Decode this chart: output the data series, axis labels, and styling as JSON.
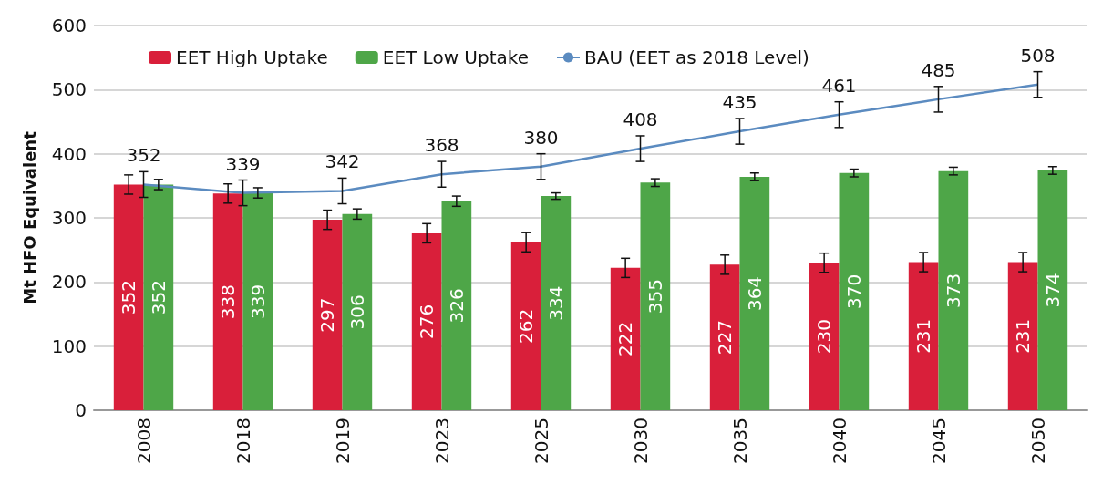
{
  "chart_data": {
    "type": "bar",
    "ylabel": "Mt HFO Equivalent",
    "categories": [
      "2008",
      "2018",
      "2019",
      "2023",
      "2025",
      "2030",
      "2035",
      "2040",
      "2045",
      "2050"
    ],
    "series": [
      {
        "name": "EET High Uptake",
        "color": "#d91f3a",
        "values": [
          352,
          338,
          297,
          276,
          262,
          222,
          227,
          230,
          231,
          231
        ],
        "errors": [
          15,
          15,
          15,
          15,
          15,
          15,
          15,
          15,
          15,
          15
        ]
      },
      {
        "name": "EET Low Uptake",
        "color": "#4ea648",
        "values": [
          352,
          339,
          306,
          326,
          334,
          355,
          364,
          370,
          373,
          374
        ],
        "errors": [
          8,
          8,
          8,
          8,
          5,
          6,
          6,
          6,
          6,
          6
        ]
      },
      {
        "name": "BAU (EET as 2018 Level)",
        "type": "line",
        "color": "#5b8bc0",
        "values": [
          352,
          339,
          342,
          368,
          380,
          408,
          435,
          461,
          485,
          508
        ],
        "errors": [
          20,
          20,
          20,
          20,
          20,
          20,
          20,
          20,
          20,
          20
        ]
      }
    ],
    "ylim": [
      0,
      600
    ],
    "yticks": [
      0,
      100,
      200,
      300,
      400,
      500,
      600
    ],
    "grid": "y",
    "legend": "top",
    "data_labels": true,
    "marker": "none"
  }
}
